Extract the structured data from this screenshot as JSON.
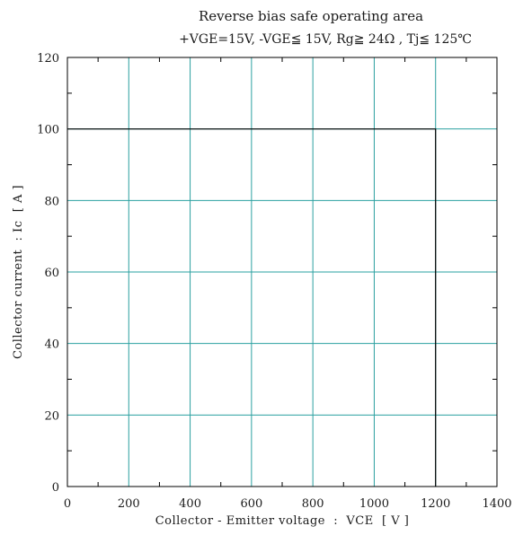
{
  "chart_data": {
    "type": "line",
    "title": "Reverse bias safe operating area",
    "subtitle": "+VGE=15V, -VGE≦  15V, Rg≧  24Ω , Tj≦  125℃",
    "xlabel": "Collector - Emitter voltage  :  VCE  [ V ]",
    "ylabel": "Collector current  : Ic  [ A ]",
    "xlim": [
      0,
      1400
    ],
    "ylim": [
      0,
      120
    ],
    "x_ticks": [
      0,
      200,
      400,
      600,
      800,
      1000,
      1200,
      1400
    ],
    "y_ticks": [
      0,
      20,
      40,
      60,
      80,
      100,
      120
    ],
    "x_tick_labels": [
      "0",
      "200",
      "400",
      "600",
      "800",
      "1000",
      "1200",
      "1400"
    ],
    "y_tick_labels": [
      "0",
      "20",
      "40",
      "60",
      "80",
      "100",
      "120"
    ],
    "grid": true,
    "grid_color": "#2aa0a0",
    "line_color": "#000000",
    "series": [
      {
        "x": [
          0,
          1200,
          1200
        ],
        "y": [
          100,
          100,
          0
        ]
      }
    ]
  }
}
